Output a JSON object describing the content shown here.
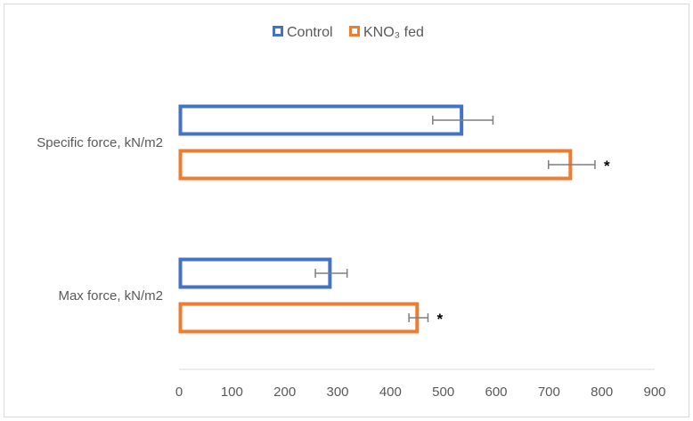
{
  "chart_data": {
    "type": "bar",
    "orientation": "horizontal",
    "categories": [
      "Max force, kN/m2",
      "Specific force, kN/m2"
    ],
    "series": [
      {
        "name": "Control",
        "color": "#4472c4",
        "values": [
          288,
          537
        ],
        "errors": [
          30,
          57
        ]
      },
      {
        "name": "KNO₃ fed",
        "color": "#ed7d31",
        "values": [
          453,
          743
        ],
        "errors": [
          18,
          44
        ]
      }
    ],
    "significance": [
      [
        "",
        "*"
      ],
      [
        "",
        "*"
      ]
    ],
    "significance_marks": {
      "Max force, kN/m2": "*",
      "Specific force, kN/m2": "*"
    },
    "xlim": [
      0,
      900
    ],
    "xticks": [
      0,
      100,
      200,
      300,
      400,
      500,
      600,
      700,
      800,
      900
    ],
    "xlabel": "",
    "ylabel": "",
    "title": "",
    "legend_position": "top",
    "grid": false
  }
}
